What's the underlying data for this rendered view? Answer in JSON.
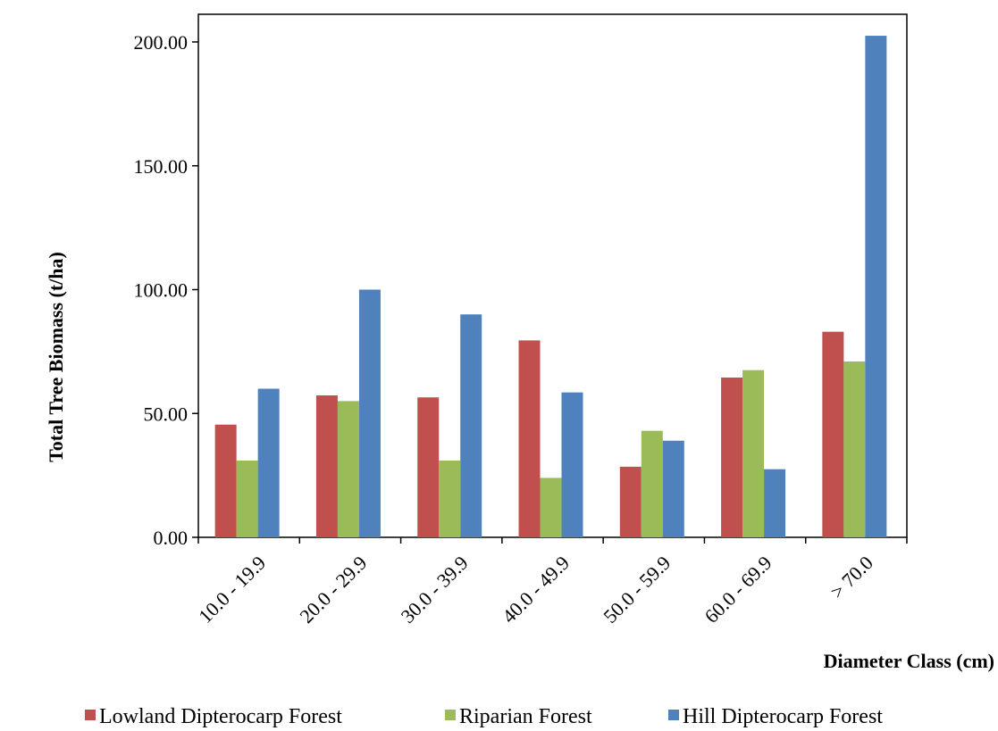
{
  "chart_data": {
    "type": "bar",
    "title": "",
    "xlabel": "Diameter Class (cm)",
    "ylabel": "Total Tree Biomass (t/ha)",
    "ylim": [
      0,
      200
    ],
    "yticks": [
      "0.00",
      "50.00",
      "100.00",
      "150.00",
      "200.00"
    ],
    "categories": [
      "10.0 - 19.9",
      "20.0 - 29.9",
      "30.0 - 39.9",
      "40.0 - 49.9",
      "50.0 - 59.9",
      "60.0 - 69.9",
      "> 70.0"
    ],
    "series": [
      {
        "name": "Lowland Dipterocarp Forest",
        "color": "#c0504d",
        "values": [
          45.5,
          57.3,
          56.5,
          79.5,
          28.5,
          64.5,
          83.0
        ]
      },
      {
        "name": "Riparian Forest",
        "color": "#9bbb59",
        "values": [
          31.0,
          55.0,
          31.0,
          24.0,
          43.0,
          67.5,
          71.0
        ]
      },
      {
        "name": "Hill Dipterocarp Forest",
        "color": "#4f81bd",
        "values": [
          60.0,
          100.0,
          90.0,
          58.5,
          39.0,
          27.5,
          202.5
        ]
      }
    ],
    "grid": false,
    "legend_position": "bottom"
  }
}
